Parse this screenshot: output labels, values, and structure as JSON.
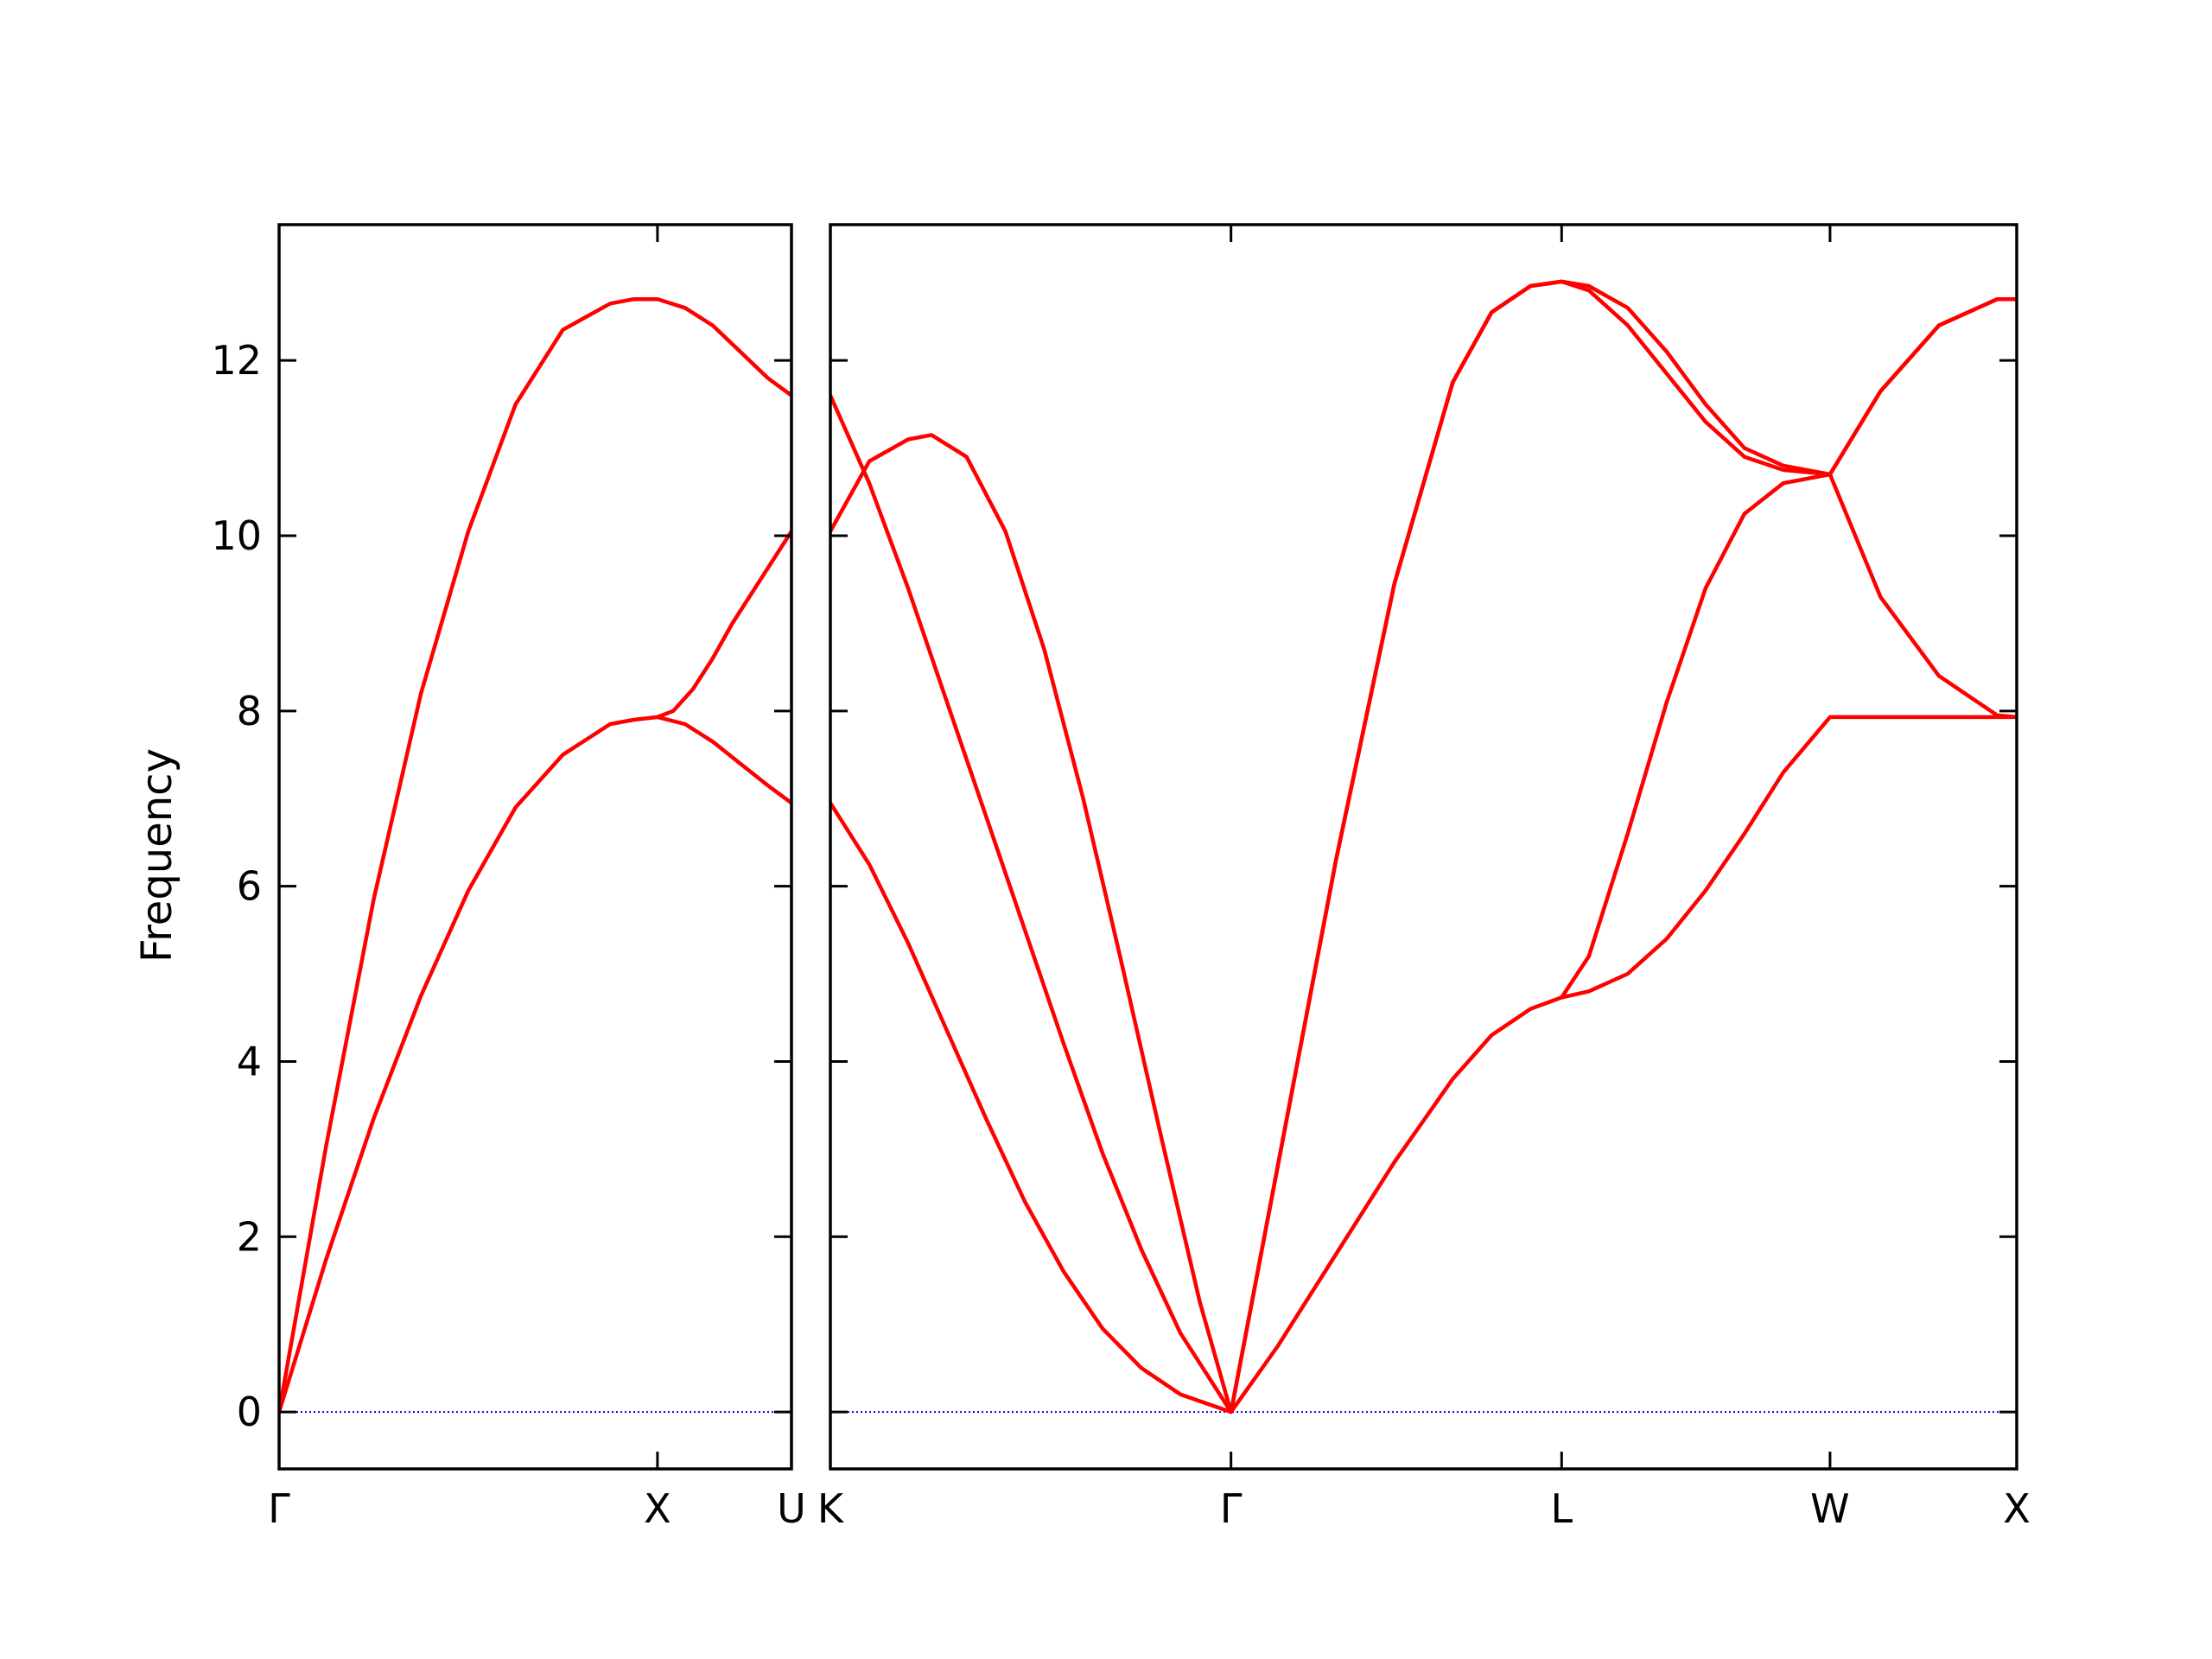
{
  "chart_data": {
    "type": "line",
    "ylabel": "Frequency",
    "ylim": [
      -0.65,
      13.55
    ],
    "yticks": [
      0,
      2,
      4,
      6,
      8,
      10,
      12
    ],
    "grid": false,
    "line_color": "#ff0000",
    "zero_line_color": "#0000cc",
    "panels": [
      {
        "xlim": [
          0,
          1.3
        ],
        "xticks": [
          {
            "x": 0,
            "label": "Γ"
          },
          {
            "x": 0.96,
            "label": "X"
          },
          {
            "x": 1.3,
            "label": "U"
          }
        ],
        "series": [
          {
            "x": [
              0,
              0.12,
              0.24,
              0.36,
              0.48,
              0.6,
              0.72,
              0.84,
              0.9,
              0.96,
              1.03,
              1.1,
              1.17,
              1.24,
              1.3
            ],
            "y": [
              0,
              1.75,
              3.35,
              4.75,
              5.95,
              6.9,
              7.5,
              7.85,
              7.9,
              7.93,
              7.85,
              7.65,
              7.4,
              7.15,
              6.95
            ]
          },
          {
            "x": [
              0,
              0.12,
              0.24,
              0.36,
              0.48,
              0.6,
              0.72,
              0.84,
              0.9,
              0.96,
              1.03,
              1.1,
              1.17,
              1.24,
              1.3
            ],
            "y": [
              0,
              3.05,
              5.85,
              8.2,
              10.05,
              11.5,
              12.35,
              12.65,
              12.7,
              12.7,
              12.6,
              12.4,
              12.1,
              11.8,
              11.6
            ]
          },
          {
            "x": [
              0.96,
              1.0,
              1.05,
              1.1,
              1.15,
              1.2,
              1.25,
              1.3
            ],
            "y": [
              7.93,
              8.0,
              8.25,
              8.6,
              9.0,
              9.35,
              9.7,
              10.05
            ]
          }
        ]
      },
      {
        "xlim": [
          0,
          3.05
        ],
        "xticks": [
          {
            "x": 0,
            "label": "K"
          },
          {
            "x": 1.03,
            "label": "Γ"
          },
          {
            "x": 1.88,
            "label": "L"
          },
          {
            "x": 2.57,
            "label": "W"
          },
          {
            "x": 3.05,
            "label": "X"
          }
        ],
        "series": [
          {
            "x": [
              0,
              0.1,
              0.2,
              0.3,
              0.4,
              0.5,
              0.6,
              0.7,
              0.8,
              0.9,
              1.03,
              1.15,
              1.3,
              1.45,
              1.6,
              1.7,
              1.8,
              1.88,
              1.95,
              2.05,
              2.15,
              2.25,
              2.35,
              2.45,
              2.57,
              2.7,
              2.85,
              3.0,
              3.05
            ],
            "y": [
              6.95,
              6.25,
              5.35,
              4.35,
              3.35,
              2.4,
              1.6,
              0.95,
              0.5,
              0.2,
              0,
              0.75,
              1.8,
              2.85,
              3.8,
              4.3,
              4.6,
              4.73,
              4.8,
              5.0,
              5.4,
              5.95,
              6.6,
              7.3,
              7.93,
              7.93,
              7.93,
              7.93,
              7.93
            ]
          },
          {
            "x": [
              0,
              0.1,
              0.2,
              0.3,
              0.4,
              0.5,
              0.6,
              0.7,
              0.8,
              0.9,
              1.03,
              1.15,
              1.3,
              1.45,
              1.6,
              1.7,
              1.8,
              1.88,
              1.95,
              2.05,
              2.15,
              2.25,
              2.35,
              2.45,
              2.57,
              2.7,
              2.85,
              3.0,
              3.05
            ],
            "y": [
              11.6,
              10.6,
              9.4,
              8.1,
              6.8,
              5.5,
              4.2,
              2.95,
              1.85,
              0.9,
              0,
              2.8,
              6.3,
              9.45,
              11.75,
              12.55,
              12.85,
              12.9,
              12.85,
              12.6,
              12.1,
              11.5,
              11.0,
              10.8,
              10.7,
              9.3,
              8.4,
              7.95,
              7.93
            ]
          },
          {
            "x": [
              0,
              0.1,
              0.2,
              0.26,
              0.35,
              0.45,
              0.55,
              0.65,
              0.75,
              0.85,
              0.95,
              1.03,
              1.15,
              1.3,
              1.45,
              1.6,
              1.7,
              1.8,
              1.88,
              1.95,
              2.05,
              2.15,
              2.25,
              2.35,
              2.45,
              2.57,
              2.7,
              2.85,
              3.0,
              3.05
            ],
            "y": [
              10.05,
              10.85,
              11.1,
              11.15,
              10.9,
              10.05,
              8.7,
              7.0,
              5.1,
              3.15,
              1.25,
              0,
              2.8,
              6.3,
              9.45,
              11.75,
              12.55,
              12.85,
              12.9,
              12.8,
              12.4,
              11.85,
              11.3,
              10.9,
              10.75,
              10.7,
              11.65,
              12.4,
              12.7,
              12.7
            ]
          },
          {
            "x": [
              1.88,
              1.95,
              2.05,
              2.15,
              2.25,
              2.35,
              2.45,
              2.57,
              2.7,
              2.85,
              3.0,
              3.05
            ],
            "y": [
              4.73,
              5.2,
              6.6,
              8.1,
              9.4,
              10.25,
              10.6,
              10.7,
              11.65,
              12.4,
              12.7,
              12.7
            ]
          }
        ]
      }
    ]
  }
}
